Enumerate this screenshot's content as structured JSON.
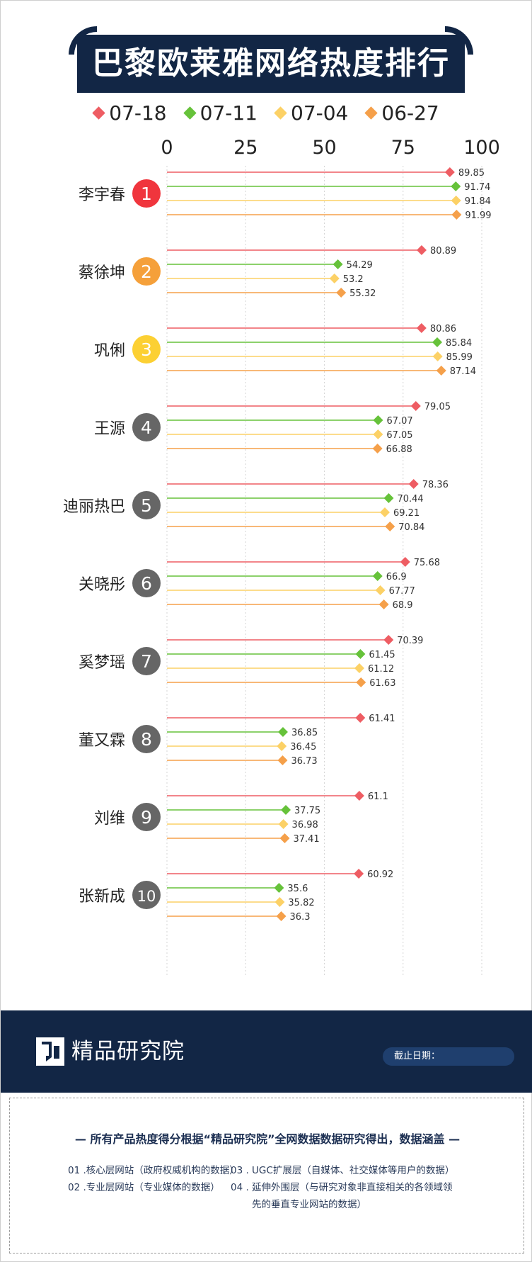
{
  "title": "巴黎欧莱雅网络热度排行榜",
  "legend": [
    {
      "label": "07-18",
      "color": "#ee5d63"
    },
    {
      "label": "07-11",
      "color": "#66c23a"
    },
    {
      "label": "07-04",
      "color": "#fcd166"
    },
    {
      "label": "06-27",
      "color": "#f5a04a"
    }
  ],
  "chart_data": {
    "type": "lollipop-bar",
    "title": "巴黎欧莱雅网络热度排行榜",
    "xlim": [
      0,
      100
    ],
    "x_ticks": [
      "0",
      "25",
      "50",
      "75",
      "100"
    ],
    "categories": [
      "李宇春",
      "蔡徐坤",
      "巩俐",
      "王源",
      "迪丽热巴",
      "关晓彤",
      "奚梦瑶",
      "董又霖",
      "刘维",
      "张新成"
    ],
    "ranks": [
      "1",
      "2",
      "3",
      "4",
      "5",
      "6",
      "7",
      "8",
      "9",
      "10"
    ],
    "rank_colors": [
      "#f0353d",
      "#f5a03a",
      "#fcd033",
      "#666666",
      "#666666",
      "#666666",
      "#666666",
      "#666666",
      "#666666",
      "#666666"
    ],
    "series": [
      {
        "name": "07-18",
        "color": "#ee5d63",
        "values": [
          89.85,
          80.89,
          80.86,
          79.05,
          78.36,
          75.68,
          70.39,
          61.41,
          61.1,
          60.92
        ]
      },
      {
        "name": "07-11",
        "color": "#66c23a",
        "values": [
          91.74,
          54.29,
          85.84,
          67.07,
          70.44,
          66.9,
          61.45,
          36.85,
          37.75,
          35.6
        ]
      },
      {
        "name": "07-04",
        "color": "#fcd166",
        "values": [
          91.84,
          53.2,
          85.99,
          67.05,
          69.21,
          67.77,
          61.12,
          36.45,
          36.98,
          35.82
        ]
      },
      {
        "name": "06-27",
        "color": "#f5a04a",
        "values": [
          91.99,
          55.32,
          87.14,
          66.88,
          70.84,
          68.9,
          61.63,
          36.73,
          37.41,
          36.3
        ]
      }
    ],
    "value_labels": [
      [
        "89.85",
        "80.89",
        "80.86",
        "79.05",
        "78.36",
        "75.68",
        "70.39",
        "61.41",
        "61.1",
        "60.92"
      ],
      [
        "91.74",
        "54.29",
        "85.84",
        "67.07",
        "70.44",
        "66.9",
        "61.45",
        "36.85",
        "37.75",
        "35.6"
      ],
      [
        "91.84",
        "53.2",
        "85.99",
        "67.05",
        "69.21",
        "67.77",
        "61.12",
        "36.45",
        "36.98",
        "35.82"
      ],
      [
        "91.99",
        "55.32",
        "87.14",
        "66.88",
        "70.84",
        "68.9",
        "61.63",
        "36.73",
        "37.41",
        "36.3"
      ]
    ]
  },
  "footer": {
    "brand": "精品研究院",
    "date_label": "截止日期：",
    "note_heading": "— 所有产品热度得分根据“精品研究院”全网数据数据研究得出，数据涵盖 —",
    "items": [
      "01 .核心层网站（政府权威机构的数据）",
      "02 .专业层网站（专业媒体的数据）",
      "03 . UGC扩展层（自媒体、社交媒体等用户的数据）",
      "04 . 延伸外围层（与研究对象非直接相关的各领域领",
      "先的垂直专业网站的数据）"
    ]
  }
}
